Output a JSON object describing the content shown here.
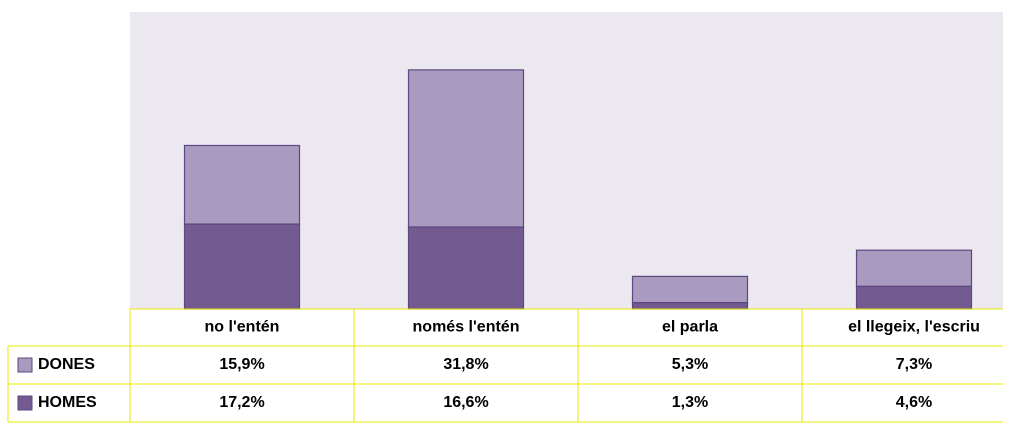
{
  "chart_data": {
    "type": "bar",
    "stacked": true,
    "categories": [
      "no l'entén",
      "només l'entén",
      "el parla",
      "el llegeix, l'escriu"
    ],
    "series": [
      {
        "name": "DONES",
        "color": "#a99bbf",
        "values": [
          15.9,
          31.8,
          5.3,
          7.3
        ],
        "value_labels": [
          "15,9%",
          "31,8%",
          "5,3%",
          "7,3%"
        ]
      },
      {
        "name": "HOMES",
        "color": "#735a90",
        "values": [
          17.2,
          16.6,
          1.3,
          4.6
        ],
        "value_labels": [
          "17,2%",
          "16,6%",
          "1,3%",
          "4,6%"
        ]
      }
    ]
  }
}
